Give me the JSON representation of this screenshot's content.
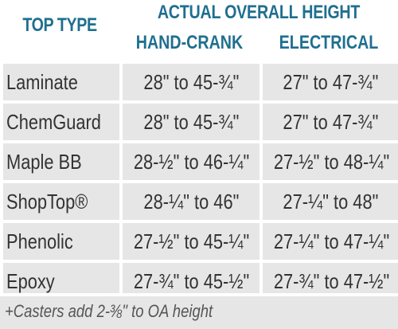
{
  "header": {
    "top_type": "TOP TYPE",
    "actual_overall_height": "ACTUAL OVERALL HEIGHT",
    "hand_crank": "HAND-CRANK",
    "electrical": "ELECTRICAL"
  },
  "rows": [
    {
      "type": "Laminate",
      "hand_crank": "28\" to 45-¾\"",
      "electrical": "27\" to 47-¾\""
    },
    {
      "type": "ChemGuard",
      "hand_crank": "28\" to 45-¾\"",
      "electrical": "27\" to 47-¾\""
    },
    {
      "type": "Maple BB",
      "hand_crank": "28-½\" to 46-¼\"",
      "electrical": "27-½\" to 48-¼\""
    },
    {
      "type": "ShopTop®",
      "hand_crank": "28-¼\" to 46\"",
      "electrical": "27-¼\" to 48\""
    },
    {
      "type": "Phenolic",
      "hand_crank": "27-½\" to 45-¼\"",
      "electrical": "27-¼\" to 47-¼\""
    },
    {
      "type": "Epoxy",
      "hand_crank": "27-¾\" to 45-½\"",
      "electrical": "27-¾\" to 47-½\""
    }
  ],
  "footer_note": "+Casters add 2-⅜\" to OA height",
  "colors": {
    "header_text": "#1f6f8f",
    "cell_bg": "#e6e6e6",
    "cell_text": "#333333"
  }
}
